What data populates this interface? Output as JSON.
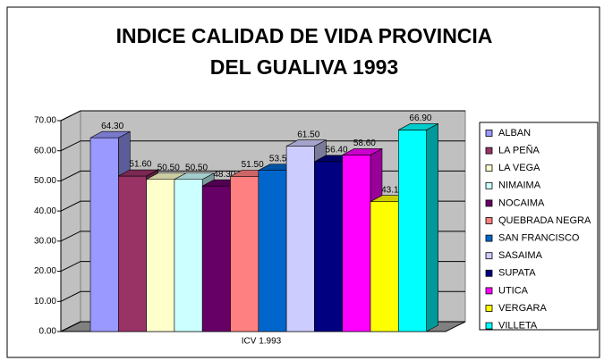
{
  "chart_data": {
    "type": "bar3d",
    "title": "INDICE CALIDAD DE VIDA PROVINCIA DEL GUALIVA 1993",
    "categories": [
      "ICV 1.993"
    ],
    "ylim": [
      0,
      70
    ],
    "yticks": [
      {
        "value": 0,
        "label": "0.00"
      },
      {
        "value": 10,
        "label": "10.00"
      },
      {
        "value": 20,
        "label": "20.00"
      },
      {
        "value": 30,
        "label": "30.00"
      },
      {
        "value": 40,
        "label": "40.00"
      },
      {
        "value": 50,
        "label": "50.00"
      },
      {
        "value": 60,
        "label": "60.00"
      },
      {
        "value": 70,
        "label": "70.00"
      }
    ],
    "grid": true,
    "legend": "right",
    "series": [
      {
        "name": "ALBAN",
        "color": "#9999FF",
        "values": [
          64.3
        ],
        "value_labels": [
          "64.30"
        ]
      },
      {
        "name": "LA PEÑA",
        "color": "#993366",
        "values": [
          51.6
        ],
        "value_labels": [
          "51.60"
        ]
      },
      {
        "name": "LA VEGA",
        "color": "#FFFFCC",
        "values": [
          50.5
        ],
        "value_labels": [
          "50.50"
        ]
      },
      {
        "name": "NIMAIMA",
        "color": "#CCFFFF",
        "values": [
          50.5
        ],
        "value_labels": [
          "50.50"
        ]
      },
      {
        "name": "NOCAIMA",
        "color": "#660066",
        "values": [
          48.3
        ],
        "value_labels": [
          "48.30"
        ]
      },
      {
        "name": "QUEBRADA NEGRA",
        "color": "#FF8080",
        "values": [
          51.5
        ],
        "value_labels": [
          "51.50"
        ]
      },
      {
        "name": "SAN FRANCISCO",
        "color": "#0066CC",
        "values": [
          53.5
        ],
        "value_labels": [
          "53.50"
        ]
      },
      {
        "name": "SASAIMA",
        "color": "#CCCCFF",
        "values": [
          61.5
        ],
        "value_labels": [
          "61.50"
        ]
      },
      {
        "name": "SUPATA",
        "color": "#000080",
        "values": [
          56.4
        ],
        "value_labels": [
          "56.40"
        ]
      },
      {
        "name": "UTICA",
        "color": "#FF00FF",
        "values": [
          58.6
        ],
        "value_labels": [
          "58.60"
        ]
      },
      {
        "name": "VERGARA",
        "color": "#FFFF00",
        "values": [
          43.1
        ],
        "value_labels": [
          "43.10"
        ]
      },
      {
        "name": "VILLETA",
        "color": "#00FFFF",
        "values": [
          66.9
        ],
        "value_labels": [
          "66.90"
        ]
      }
    ]
  }
}
